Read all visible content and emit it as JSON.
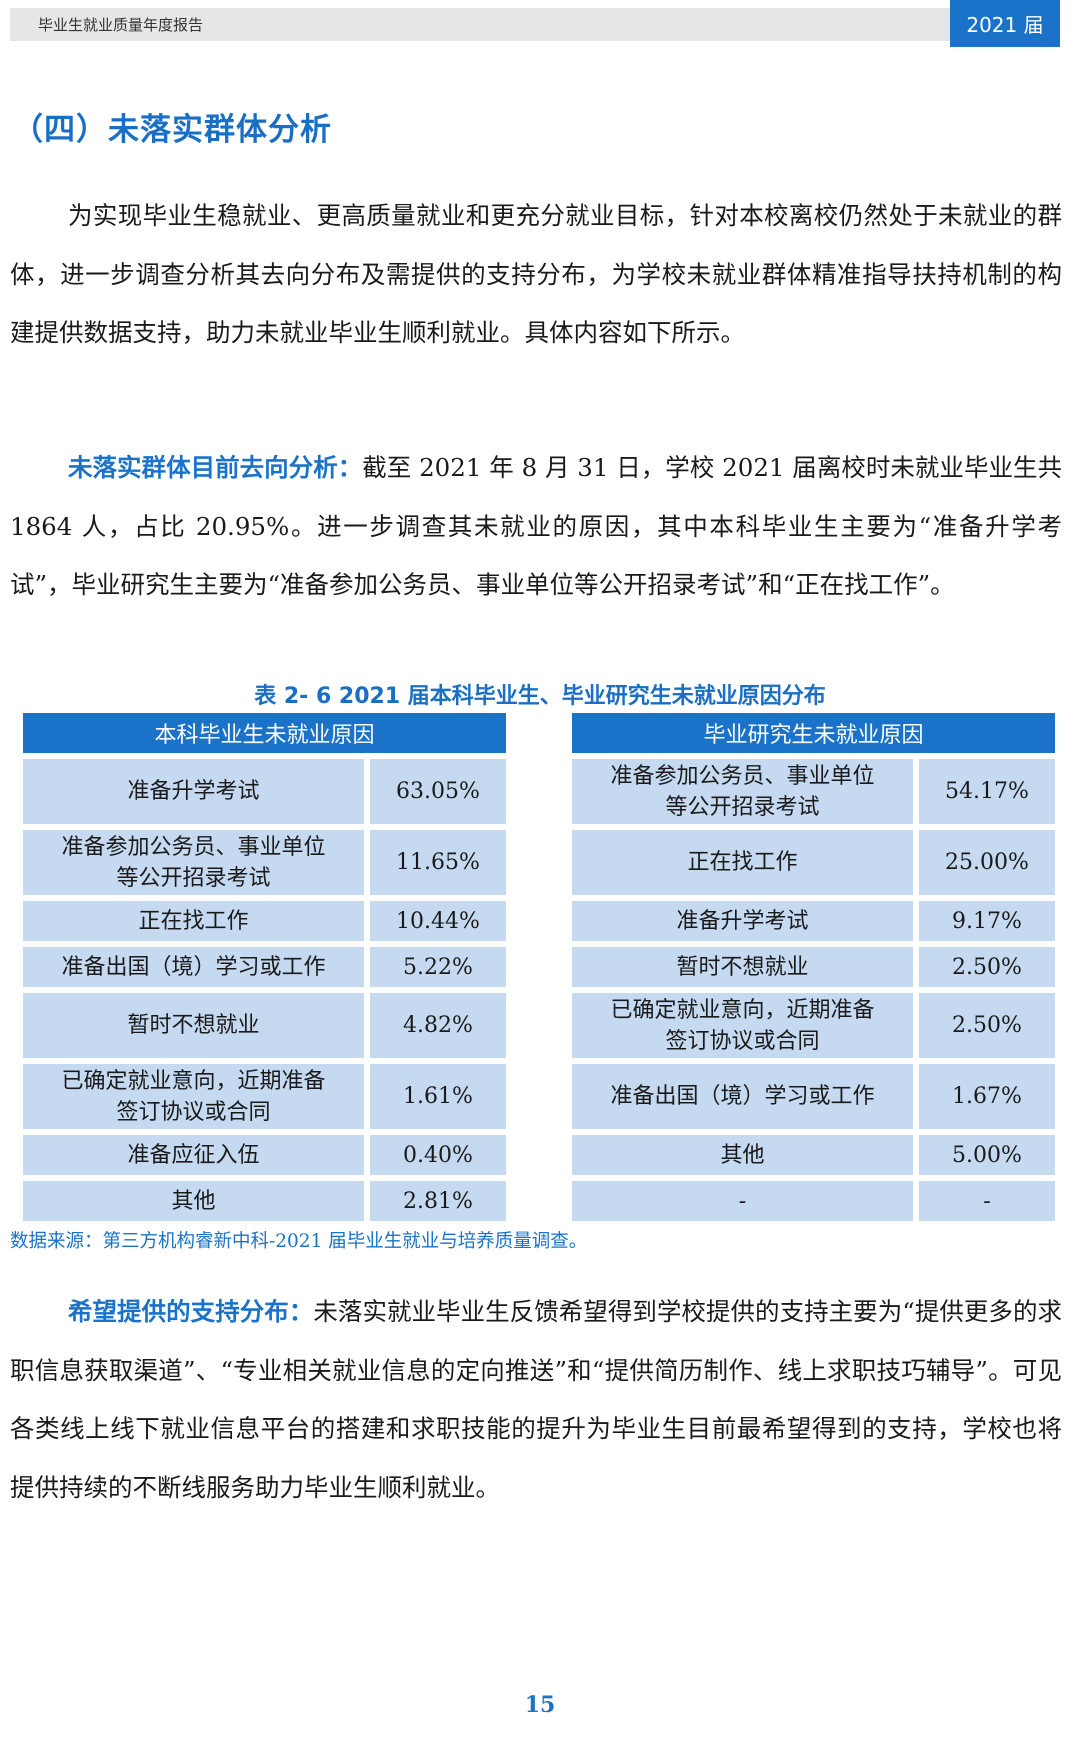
{
  "header": {
    "title": "毕业生就业质量年度报告",
    "year": "2021 届"
  },
  "section_title": "（四）未落实群体分析",
  "intro_paragraph": "为实现毕业生稳就业、更高质量就业和更充分就业目标，针对本校离校仍然处于未就业的群体，进一步调查分析其去向分布及需提供的支持分布，为学校未就业群体精准指导扶持机制的构建提供数据支持，助力未就业毕业生顺利就业。具体内容如下所示。",
  "destination": {
    "lead": "未落实群体目前去向分析：",
    "text": "截至 2021 年 8 月 31 日，学校 2021 届离校时未就业毕业生共 1864 人，占比 20.95%。进一步调查其未就业的原因，其中本科毕业生主要为“准备升学考试”，毕业研究生主要为“准备参加公务员、事业单位等公开招录考试”和“正在找工作”。"
  },
  "table": {
    "caption": "表 2- 6 2021 届本科毕业生、毕业研究生未就业原因分布",
    "left_header": "本科毕业生未就业原因",
    "right_header": "毕业研究生未就业原因",
    "left_rows": [
      {
        "reason": "准备升学考试",
        "pct": "63.05%"
      },
      {
        "reason": "准备参加公务员、事业单位\n等公开招录考试",
        "pct": "11.65%"
      },
      {
        "reason": "正在找工作",
        "pct": "10.44%"
      },
      {
        "reason": "准备出国（境）学习或工作",
        "pct": "5.22%"
      },
      {
        "reason": "暂时不想就业",
        "pct": "4.82%"
      },
      {
        "reason": "已确定就业意向，近期准备\n签订协议或合同",
        "pct": "1.61%"
      },
      {
        "reason": "准备应征入伍",
        "pct": "0.40%"
      },
      {
        "reason": "其他",
        "pct": "2.81%"
      }
    ],
    "right_rows": [
      {
        "reason": "准备参加公务员、事业单位\n等公开招录考试",
        "pct": "54.17%"
      },
      {
        "reason": "正在找工作",
        "pct": "25.00%"
      },
      {
        "reason": "准备升学考试",
        "pct": "9.17%"
      },
      {
        "reason": "暂时不想就业",
        "pct": "2.50%"
      },
      {
        "reason": "已确定就业意向，近期准备\n签订协议或合同",
        "pct": "2.50%"
      },
      {
        "reason": "准备出国（境）学习或工作",
        "pct": "1.67%"
      },
      {
        "reason": "其他",
        "pct": "5.00%"
      },
      {
        "reason": "-",
        "pct": "-"
      }
    ],
    "source": "数据来源：第三方机构睿新中科-2021 届毕业生就业与培养质量调查。"
  },
  "support": {
    "lead": "希望提供的支持分布：",
    "text": "未落实就业毕业生反馈希望得到学校提供的支持主要为“提供更多的求职信息获取渠道”、“专业相关就业信息的定向推送”和“提供简历制作、线上求职技巧辅导”。可见各类线上线下就业信息平台的搭建和求职技能的提升为毕业生目前最希望得到的支持，学校也将提供持续的不断线服务助力毕业生顺利就业。"
  },
  "page_number": "15",
  "colors": {
    "accent": "#1a73c8",
    "table_cell": "#c5d9f1",
    "header_bar": "#e6e6e6"
  }
}
